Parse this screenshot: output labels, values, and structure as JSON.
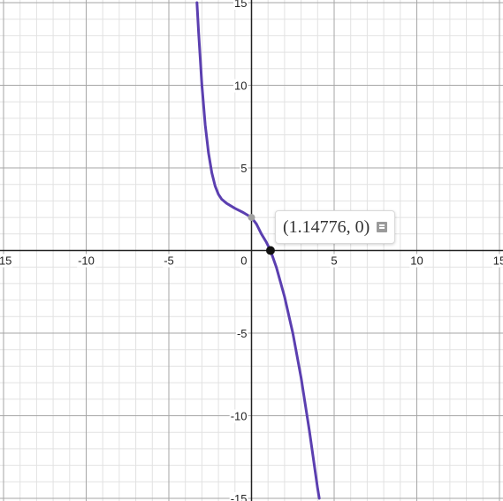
{
  "chart_data": {
    "type": "line",
    "title": "",
    "xlabel": "",
    "ylabel": "",
    "xlim": [
      -15,
      15
    ],
    "ylim": [
      -15,
      15
    ],
    "x_ticks": [
      "-15",
      "-10",
      "-5",
      "0",
      "5",
      "10",
      "15"
    ],
    "y_ticks": [
      "15",
      "10",
      "5",
      "-5",
      "-10",
      "-15"
    ],
    "grid": true,
    "series": [
      {
        "color": "#5b3fb0",
        "points": [
          [
            -3.3,
            15.0
          ],
          [
            -3.2,
            13.2
          ],
          [
            -3.0,
            10.0
          ],
          [
            -2.8,
            7.6
          ],
          [
            -2.6,
            5.9
          ],
          [
            -2.4,
            4.7
          ],
          [
            -2.2,
            3.9
          ],
          [
            -2.0,
            3.4
          ],
          [
            -1.8,
            3.1
          ],
          [
            -1.5,
            2.85
          ],
          [
            -1.0,
            2.55
          ],
          [
            -0.5,
            2.3
          ],
          [
            0.0,
            2.0
          ],
          [
            0.3,
            1.6
          ],
          [
            0.6,
            1.0
          ],
          [
            0.9,
            0.5
          ],
          [
            1.14776,
            0.0
          ],
          [
            1.5,
            -1.0
          ],
          [
            2.0,
            -2.8
          ],
          [
            2.5,
            -5.0
          ],
          [
            3.0,
            -7.7
          ],
          [
            3.5,
            -10.9
          ],
          [
            4.0,
            -14.4
          ],
          [
            4.1,
            -15.0
          ]
        ]
      }
    ],
    "marked_points": [
      {
        "x": 0,
        "y": 2,
        "color": "#a0a0a0"
      },
      {
        "x": 1.14776,
        "y": 0,
        "color": "#111111"
      }
    ],
    "annotation": {
      "label": "(1.14776, 0)",
      "icon": "note-icon"
    }
  }
}
